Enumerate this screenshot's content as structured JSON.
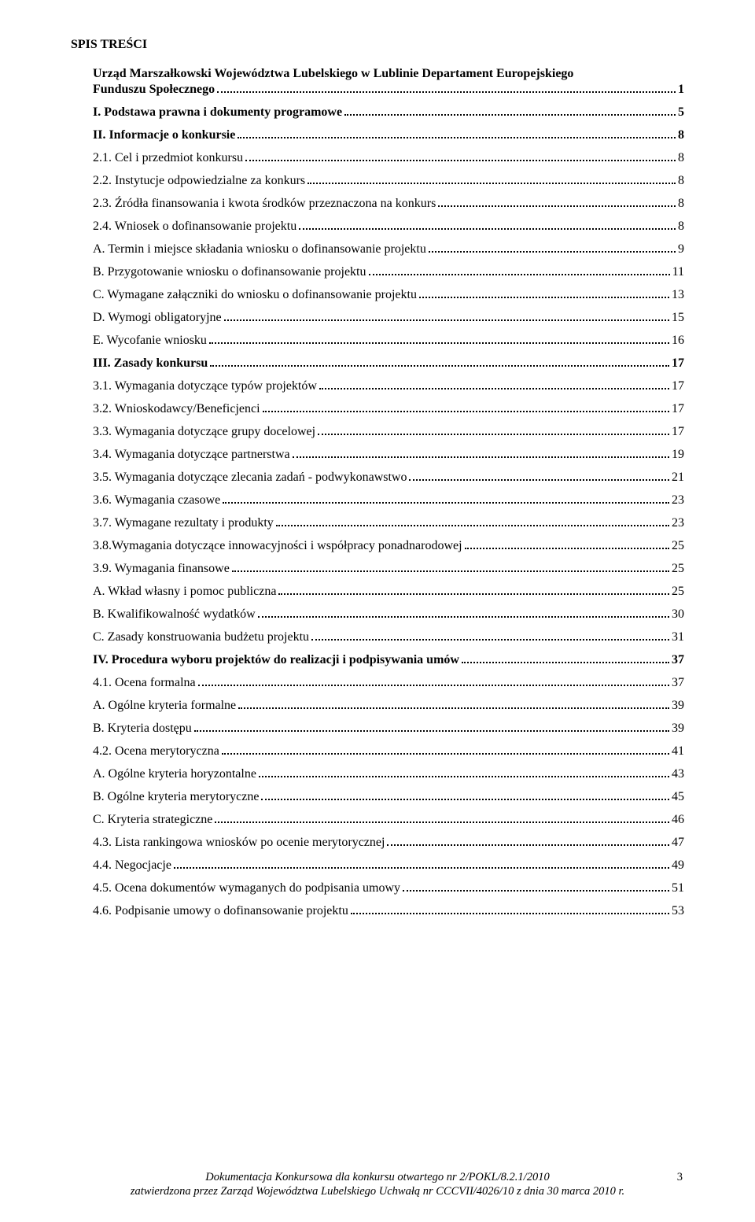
{
  "title": "SPIS TREŚCI",
  "heading_line1": "Urząd Marszałkowski Województwa Lubelskiego w Lublinie Departament Europejskiego",
  "heading_line2": "Funduszu Społecznego",
  "heading_page": "1",
  "toc": [
    {
      "label": "I. Podstawa prawna i dokumenty programowe",
      "page": "5",
      "bold": true
    },
    {
      "label": "II. Informacje o konkursie",
      "page": "8",
      "bold": true
    },
    {
      "label": "2.1. Cel i przedmiot konkursu",
      "page": "8",
      "bold": false
    },
    {
      "label": "2.2. Instytucje odpowiedzialne za konkurs",
      "page": "8",
      "bold": false
    },
    {
      "label": "2.3. Źródła finansowania i kwota środków przeznaczona na konkurs",
      "page": "8",
      "bold": false
    },
    {
      "label": "2.4. Wniosek o dofinansowanie projektu",
      "page": "8",
      "bold": false
    },
    {
      "label": "A. Termin i miejsce składania wniosku o dofinansowanie projektu",
      "page": "9",
      "bold": false
    },
    {
      "label": "B. Przygotowanie wniosku o dofinansowanie projektu",
      "page": "11",
      "bold": false
    },
    {
      "label": "C. Wymagane załączniki do wniosku o dofinansowanie projektu",
      "page": "13",
      "bold": false
    },
    {
      "label": "D. Wymogi obligatoryjne",
      "page": "15",
      "bold": false
    },
    {
      "label": "E. Wycofanie wniosku",
      "page": "16",
      "bold": false
    },
    {
      "label": "III. Zasady konkursu",
      "page": "17",
      "bold": true
    },
    {
      "label": "3.1. Wymagania dotyczące typów projektów",
      "page": "17",
      "bold": false
    },
    {
      "label": "3.2. Wnioskodawcy/Beneficjenci",
      "page": "17",
      "bold": false
    },
    {
      "label": "3.3. Wymagania dotyczące grupy docelowej",
      "page": "17",
      "bold": false
    },
    {
      "label": "3.4. Wymagania dotyczące partnerstwa",
      "page": "19",
      "bold": false
    },
    {
      "label": "3.5. Wymagania dotyczące zlecania zadań - podwykonawstwo",
      "page": "21",
      "bold": false
    },
    {
      "label": "3.6. Wymagania czasowe",
      "page": "23",
      "bold": false
    },
    {
      "label": "3.7. Wymagane rezultaty i produkty",
      "page": "23",
      "bold": false
    },
    {
      "label": "3.8.Wymagania dotyczące innowacyjności i współpracy ponadnarodowej",
      "page": "25",
      "bold": false
    },
    {
      "label": "3.9. Wymagania finansowe",
      "page": "25",
      "bold": false
    },
    {
      "label": "A. Wkład własny i pomoc publiczna",
      "page": "25",
      "bold": false
    },
    {
      "label": "B. Kwalifikowalność wydatków",
      "page": "30",
      "bold": false
    },
    {
      "label": "C. Zasady konstruowania budżetu projektu",
      "page": "31",
      "bold": false
    },
    {
      "label": "IV. Procedura wyboru projektów do realizacji i podpisywania umów",
      "page": "37",
      "bold": true
    },
    {
      "label": "4.1. Ocena formalna",
      "page": "37",
      "bold": false
    },
    {
      "label": "A. Ogólne kryteria formalne",
      "page": "39",
      "bold": false
    },
    {
      "label": "B. Kryteria dostępu",
      "page": "39",
      "bold": false
    },
    {
      "label": "4.2. Ocena merytoryczna",
      "page": "41",
      "bold": false
    },
    {
      "label": "A. Ogólne kryteria horyzontalne",
      "page": "43",
      "bold": false
    },
    {
      "label": "B. Ogólne kryteria merytoryczne",
      "page": "45",
      "bold": false
    },
    {
      "label": "C. Kryteria strategiczne",
      "page": "46",
      "bold": false
    },
    {
      "label": "4.3. Lista rankingowa wniosków po ocenie merytorycznej",
      "page": "47",
      "bold": false
    },
    {
      "label": "4.4. Negocjacje",
      "page": "49",
      "bold": false
    },
    {
      "label": "4.5. Ocena dokumentów wymaganych do podpisania umowy",
      "page": "51",
      "bold": false
    },
    {
      "label": "4.6. Podpisanie umowy o dofinansowanie projektu",
      "page": "53",
      "bold": false
    }
  ],
  "footer_line1": "Dokumentacja Konkursowa dla konkursu otwartego nr 2/POKL/8.2.1/2010",
  "footer_line2": "zatwierdzona przez Zarząd Województwa Lubelskiego Uchwałą nr CCCVII/4026/10 z dnia 30 marca 2010 r.",
  "footer_page": "3"
}
